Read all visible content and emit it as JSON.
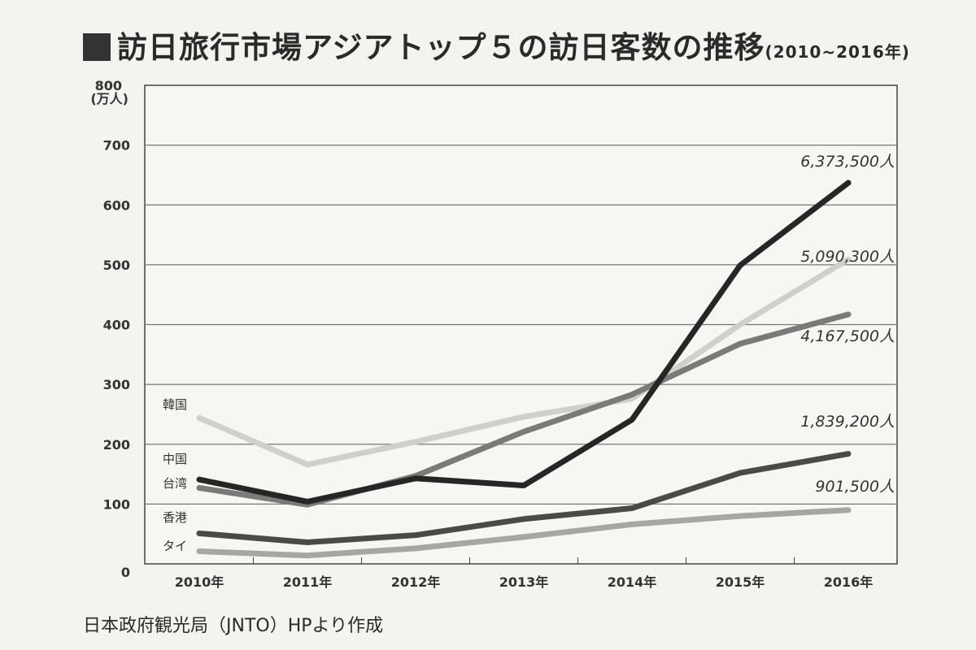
{
  "title": {
    "main": "訪日旅行市場アジアトップ５の訪日客数の推移",
    "sub": "(2010~2016年)"
  },
  "source": "日本政府観光局（JNTO）HPより作成",
  "chart_data": {
    "type": "line",
    "title": "訪日旅行市場アジアトップ５の訪日客数の推移(2010~2016年)",
    "xlabel": "",
    "ylabel": "(万人)",
    "ylim": [
      0,
      800
    ],
    "yticks": [
      0,
      100,
      200,
      300,
      400,
      500,
      600,
      700,
      800
    ],
    "categories": [
      "2010年",
      "2011年",
      "2012年",
      "2013年",
      "2014年",
      "2015年",
      "2016年"
    ],
    "grid": true,
    "series": [
      {
        "name": "韓国",
        "color": "#cfcfcb",
        "values": [
          244,
          166,
          204,
          246,
          276,
          400,
          509
        ],
        "end_label": "5,090,300人"
      },
      {
        "name": "台湾",
        "color": "#7a7a78",
        "values": [
          127,
          99,
          147,
          221,
          283,
          368,
          417
        ],
        "end_label": "4,167,500人"
      },
      {
        "name": "中国",
        "color": "#262626",
        "values": [
          141,
          104,
          143,
          131,
          241,
          499,
          637
        ],
        "end_label": "6,373,500人"
      },
      {
        "name": "タイ",
        "color": "#a6a6a3",
        "values": [
          21,
          14,
          26,
          45,
          66,
          80,
          90
        ],
        "end_label": "901,500人"
      },
      {
        "name": "香港",
        "color": "#4a4a48",
        "values": [
          51,
          36,
          48,
          75,
          93,
          152,
          184
        ],
        "end_label": "1,839,200人"
      }
    ]
  }
}
